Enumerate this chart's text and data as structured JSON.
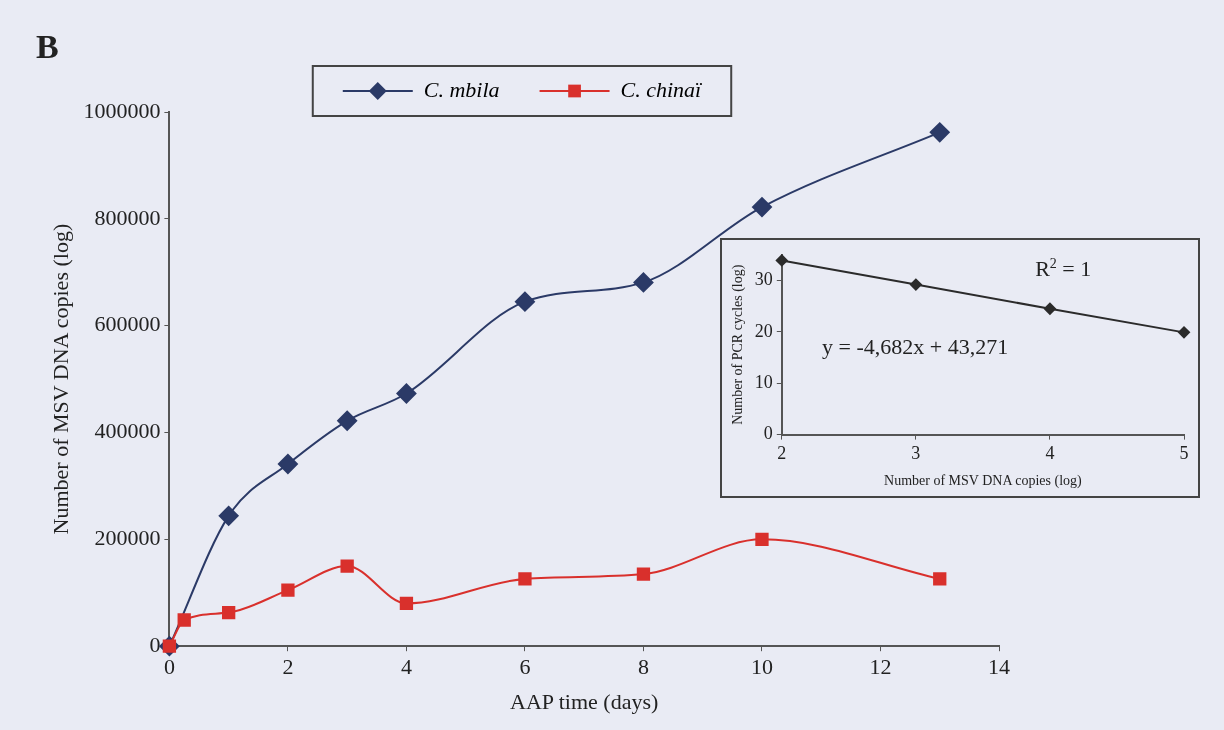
{
  "chart_data": [
    {
      "type": "line",
      "annotations": [
        "B"
      ],
      "xlabel": "AAP time (days)",
      "ylabel": "Number of MSV DNA copies (log)",
      "xlim": [
        0,
        14
      ],
      "xticks": [
        0,
        2,
        4,
        6,
        8,
        10,
        12,
        14
      ],
      "ylim": [
        0,
        1000000
      ],
      "yticks": [
        0,
        200000,
        400000,
        600000,
        800000,
        1000000
      ],
      "legend": "top",
      "line_style": "solid",
      "series": [
        {
          "name": "C. mbila",
          "color": "#2b3a67",
          "marker": "diamond",
          "x": [
            0,
            0.25,
            1,
            2,
            3,
            4,
            6,
            8,
            10,
            13
          ],
          "values": [
            0,
            null,
            244000,
            341000,
            422000,
            473000,
            645000,
            681000,
            822000,
            962000
          ]
        },
        {
          "name": "C. chinaï",
          "color": "#d9302c",
          "marker": "square",
          "x": [
            0,
            0.25,
            1,
            2,
            3,
            4,
            6,
            8,
            10,
            13
          ],
          "values": [
            0,
            49000,
            63000,
            105000,
            150000,
            80000,
            126000,
            135000,
            200000,
            126000
          ]
        }
      ]
    },
    {
      "type": "line",
      "annotations": [
        "R$^{2}$ = 1",
        "y = -4,682x + 43,271"
      ],
      "xlabel": "Number of MSV DNA copies (log)",
      "ylabel": "Number of PCR cycles (log)",
      "xlim": [
        2,
        5
      ],
      "xticks": [
        2,
        3,
        4,
        5
      ],
      "ylim": [
        0,
        35
      ],
      "yticks": [
        0,
        10,
        20,
        30
      ],
      "marker": "diamond",
      "line_style": "solid",
      "series": [
        {
          "color": "#2b2b2b",
          "x": [
            2,
            3,
            4,
            5
          ],
          "values": [
            33.9,
            29.2,
            24.5,
            19.9
          ]
        }
      ]
    }
  ]
}
